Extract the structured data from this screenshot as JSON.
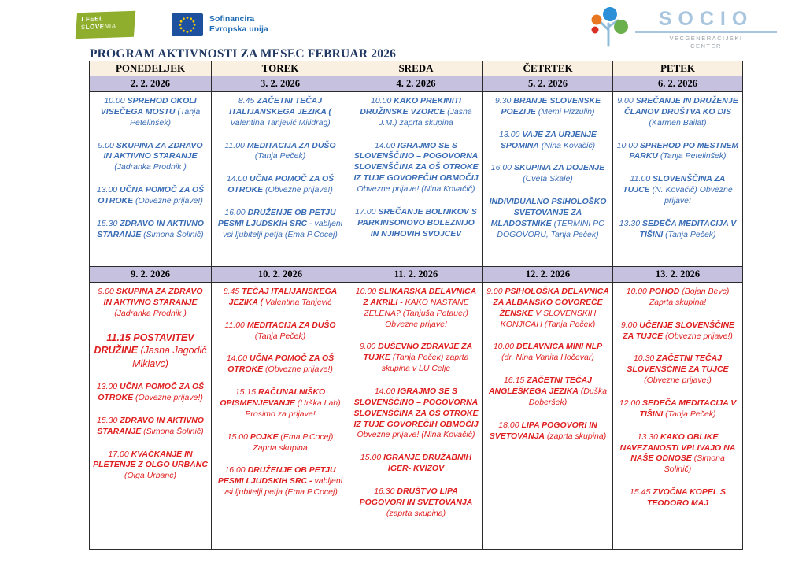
{
  "header": {
    "feel_line1": "I FEEL",
    "feel_love": "LOVE",
    "feel_pre": "S",
    "feel_post": "NIA",
    "eu_line1": "Sofinancira",
    "eu_line2": "Evropska unija",
    "socio_title": "SOCIO",
    "socio_sub1": "VEČGENERACIJSKI",
    "socio_sub2": "CENTER"
  },
  "title": "PROGRAM AKTIVNOSTI ZA MESEC FEBRUAR 2026",
  "colors": {
    "title_text": "#1f3864",
    "day_header_bg": "#faf0e1",
    "date_row_bg": "#c7c1e0",
    "week1_text": "#3a6db5",
    "week2_text": "#df1f1f",
    "feel_green": "#8fae2e",
    "eu_blue": "#1e50a0",
    "socio_blue": "#a9c6de"
  },
  "table": {
    "day_headers": [
      "PONEDELJEK",
      "TOREK",
      "SREDA",
      "ČETRTEK",
      "PETEK"
    ],
    "weeks": [
      {
        "color": "#3a6db5",
        "dates": [
          "2. 2.  2026",
          "3. 2. 2026",
          "4. 2. 2026",
          "5. 2. 2026",
          "6. 2. 2026"
        ],
        "columns": [
          [
            {
              "time": "10.00",
              "title": "SPREHOD OKOLI VISEČEGA MOSTU",
              "note": "(Tanja Petelinšek)"
            },
            {
              "time": "9.00",
              "title": "SKUPINA ZA ZDRAVO IN AKTIVNO STARANJE",
              "note": "(Jadranka Prodnik )"
            },
            {
              "time": "13.00",
              "title": "UČNA POMOČ ZA OŠ OTROKE",
              "note": "(Obvezne prijave!)"
            },
            {
              "time": "15.30",
              "title": "ZDRAVO IN AKTIVNO STARANJE",
              "note": "(Simona Šolinič)"
            }
          ],
          [
            {
              "time": "8.45",
              "title": "ZAČETNI TEČAJ ITALIJANSKEGA JEZIKA (",
              "note": "Valentina Tanjević Milidrag)"
            },
            {
              "time": "11.00",
              "title": "MEDITACIJA ZA DUŠO",
              "note": "(Tanja Peček)"
            },
            {
              "time": "14.00",
              "title": "UČNA POMOČ ZA OŠ OTROKE",
              "note": "(Obvezne prijave!)"
            },
            {
              "time": "16.00",
              "title": "DRUŽENJE OB PETJU PESMI LJUDSKIH SRC -",
              "note": "vabljeni vsi ljubitelji petja (Ema P.Cocej)"
            }
          ],
          [
            {
              "time": "10.00",
              "title": "KAKO PREKINITI DRUŽINSKE VZORCE",
              "note": "(Jasna J.M.) zaprta skupina"
            },
            {
              "time": "14.00",
              "title": "IGRAJMO SE S SLOVENŠČINO – POGOVORNA SLOVENŠČINA ZA OŠ OTROKE IZ TUJE GOVOREČIH OBMOČIJ",
              "note": "Obvezne prijave!  (Nina Kovačič)"
            },
            {
              "time": "17.00",
              "title": "SREČANJE BOLNIKOV S PARKINSONOVO BOLEZNIJO IN NJIHOVIH SVOJCEV",
              "note": ""
            }
          ],
          [
            {
              "time": "9.30",
              "title": "BRANJE SLOVENSKE POEZIJE",
              "note": "(Memi Pizzulin)"
            },
            {
              "time": "13.00",
              "title": "VAJE ZA URJENJE SPOMINA",
              "note": "(Nina Kovačič)"
            },
            {
              "time": "16.00",
              "title": "SKUPINA ZA DOJENJE",
              "note": "(Cveta Skale)"
            },
            {
              "time": "",
              "title": "INDIVIDUALNO PSIHOLOŠKO SVETOVANJE ZA MLADOSTNIKE",
              "note": "(TERMINI PO DOGOVORU, Tanja Peček)"
            }
          ],
          [
            {
              "time": "9.00",
              "title": "SREČANJE IN DRUŽENJE ČLANOV DRUŠTVA KO DIS",
              "note": "(Karmen Bailat)"
            },
            {
              "time": "10.00",
              "title": "SPREHOD PO MESTNEM PARKU",
              "note": "(Tanja Petelinšek)"
            },
            {
              "time": "11.00",
              "title": "SLOVENŠČINA ZA TUJCE",
              "note": "(N. Kovačič) Obvezne prijave!"
            },
            {
              "time": "13.30",
              "title": "SEDEČA MEDITACIJA V TIŠINI",
              "note": "(Tanja Peček)"
            }
          ]
        ]
      },
      {
        "color": "#df1f1f",
        "dates": [
          "9. 2.  2026",
          "10. 2.  2026",
          "11. 2. 2026",
          "12. 2. 2026",
          "13. 2. 2026"
        ],
        "columns": [
          [
            {
              "time": "9.00",
              "title": "SKUPINA ZA ZDRAVO IN AKTIVNO STARANJE",
              "note": "(Jadranka Prodnik )"
            },
            {
              "time": "11.15",
              "title": "POSTAVITEV DRUŽINE",
              "note": "(Jasna Jagodič Miklavc)",
              "big": true
            },
            {
              "time": "13.00",
              "title": "UČNA POMOČ ZA OŠ OTROKE",
              "note": "(Obvezne prijave!)"
            },
            {
              "time": "15.30",
              "title": "ZDRAVO IN AKTIVNO STARANJE",
              "note": "(Simona Šolinič)"
            },
            {
              "time": "17.00",
              "title": "KVAČKANJE IN PLETENJE Z OLGO URBANC",
              "note": "(Olga Urbanc)"
            }
          ],
          [
            {
              "time": "8.45",
              "title": "TEČAJ ITALIJANSKEGA JEZIKA (",
              "note": "Valentina Tanjević"
            },
            {
              "time": "11.00",
              "title": "MEDITACIJA ZA DUŠO",
              "note": "(Tanja Peček)"
            },
            {
              "time": "14.00",
              "title": "UČNA POMOČ ZA OŠ OTROKE",
              "note": "(Obvezne prijave!)"
            },
            {
              "time": "15.15",
              "title": "RAČUNALNIŠKO OPISMENJEVANJE",
              "note": "(Urška Lah) Prosimo za prijave!"
            },
            {
              "time": "15.00",
              "title": "POJKE",
              "note": "(Ema P.Cocej) Zaprta skupina"
            },
            {
              "time": "16.00",
              "title": "DRUŽENJE OB PETJU PESMI LJUDSKIH SRC -",
              "note": "vabljeni vsi ljubitelji petja (Ema P.Cocej)"
            }
          ],
          [
            {
              "time": "10.00",
              "title": "SLIKARSKA DELAVNICA Z AKRILI -",
              "note": "KAKO NASTANE ZELENA?  (Tanjuša Petauer) Obvezne prijave!"
            },
            {
              "time": "9.00",
              "title": "DUŠEVNO ZDRAVJE ZA TUJKE",
              "note": "(Tanja Peček) zaprta skupina v LU Celje"
            },
            {
              "time": "14.00",
              "title": "IGRAJMO SE S SLOVENŠČINO – POGOVORNA SLOVENŠČINA ZA OŠ OTROKE IZ TUJE GOVOREČIH OBMOČIJ",
              "note": "Obvezne prijave! (Nina Kovačič)"
            },
            {
              "time": "15.00",
              "title": "IGRANJE DRUŽABNIH IGER- KVIZOV",
              "note": ""
            },
            {
              "time": "16.30",
              "title": "DRUŠTVO LIPA POGOVORI IN SVETOVANJA",
              "note": "(zaprta skupina)"
            }
          ],
          [
            {
              "time": "9.00",
              "title": "PSIHOLOŠKA DELAVNICA ZA ALBANSKO GOVOREČE ŽENSKE",
              "note": "V SLOVENSKIH KONJICAH (Tanja Peček)"
            },
            {
              "time": "10.00",
              "title": "DELAVNICA MINI NLP",
              "note": "(dr. Nina Vanita Hočevar)"
            },
            {
              "time": "16.15",
              "title": "ZAČETNI TEČAJ ANGLEŠKEGA JEZIKA",
              "note": "(Duška Doberšek)"
            },
            {
              "time": "18.00",
              "title": "LIPA POGOVORI IN SVETOVANJA",
              "note": "(zaprta skupina)"
            }
          ],
          [
            {
              "time": "10.00",
              "title": "POHOD",
              "note": "(Bojan Bevc) Zaprta skupina!"
            },
            {
              "time": "9.00",
              "title": "UČENJE SLOVENŠČINE ZA TUJCE",
              "note": "(Obvezne prijave!)"
            },
            {
              "time": "10.30",
              "title": "ZAČETNI TEČAJ SLOVENŠČINE ZA TUJCE",
              "note": "(Obvezne prijave!)"
            },
            {
              "time": "12.00",
              "title": "SEDEČA MEDITACIJA V TIŠINI",
              "note": "(Tanja Peček)"
            },
            {
              "time": "13.30",
              "title": "KAKO OBLIKE NAVEZANOSTI VPLIVAJO NA NAŠE ODNOSE",
              "note": "(Simona Šolinič)"
            },
            {
              "time": "15.45",
              "title": "ZVOČNA KOPEL  S TEODORO MAJ",
              "note": ""
            }
          ]
        ]
      }
    ]
  }
}
